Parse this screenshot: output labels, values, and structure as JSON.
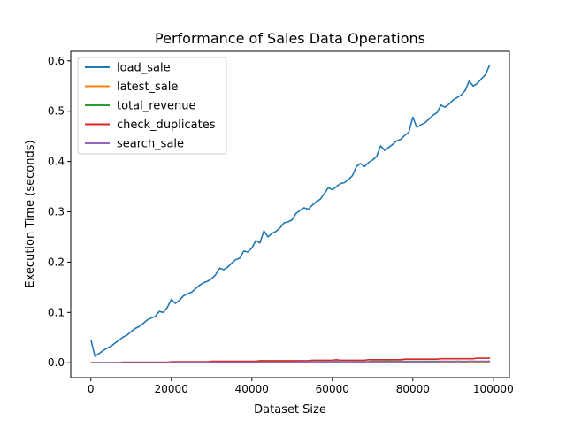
{
  "chart_data": {
    "type": "line",
    "title": "Performance of Sales Data Operations",
    "xlabel": "Dataset Size",
    "ylabel": "Execution Time (seconds)",
    "xlim": [
      -5000,
      104000
    ],
    "ylim": [
      -0.0295,
      0.619
    ],
    "x_ticks": [
      0,
      20000,
      40000,
      60000,
      80000,
      100000
    ],
    "x_tick_labels": [
      "0",
      "20000",
      "40000",
      "60000",
      "80000",
      "100000"
    ],
    "y_ticks": [
      0.0,
      0.1,
      0.2,
      0.3,
      0.4,
      0.5,
      0.6
    ],
    "y_tick_labels": [
      "0.0",
      "0.1",
      "0.2",
      "0.3",
      "0.4",
      "0.5",
      "0.6"
    ],
    "grid": false,
    "legend_position": "top-left",
    "x": [
      100,
      1000,
      2000,
      3000,
      4000,
      5000,
      6000,
      7000,
      8000,
      9000,
      10000,
      11000,
      12000,
      13000,
      14000,
      15000,
      16000,
      17000,
      18000,
      19000,
      20000,
      21000,
      22000,
      23000,
      24000,
      25000,
      26000,
      27000,
      28000,
      29000,
      30000,
      31000,
      32000,
      33000,
      34000,
      35000,
      36000,
      37000,
      38000,
      39000,
      40000,
      41000,
      42000,
      43000,
      44000,
      45000,
      46000,
      47000,
      48000,
      49000,
      50000,
      51000,
      52000,
      53000,
      54000,
      55000,
      56000,
      57000,
      58000,
      59000,
      60000,
      61000,
      62000,
      63000,
      64000,
      65000,
      66000,
      67000,
      68000,
      69000,
      70000,
      71000,
      72000,
      73000,
      74000,
      75000,
      76000,
      77000,
      78000,
      79000,
      80000,
      81000,
      82000,
      83000,
      84000,
      85000,
      86000,
      87000,
      88000,
      89000,
      90000,
      91000,
      92000,
      93000,
      94000,
      95000,
      96000,
      97000,
      98000,
      99000
    ],
    "series": [
      {
        "name": "load_sale",
        "color": "#1f77b4",
        "values": [
          0.043,
          0.013,
          0.018,
          0.024,
          0.029,
          0.033,
          0.039,
          0.045,
          0.051,
          0.055,
          0.062,
          0.068,
          0.072,
          0.078,
          0.085,
          0.089,
          0.092,
          0.102,
          0.1,
          0.11,
          0.126,
          0.118,
          0.124,
          0.133,
          0.137,
          0.14,
          0.147,
          0.154,
          0.159,
          0.162,
          0.167,
          0.175,
          0.188,
          0.185,
          0.19,
          0.198,
          0.205,
          0.208,
          0.222,
          0.22,
          0.228,
          0.243,
          0.238,
          0.262,
          0.25,
          0.257,
          0.261,
          0.268,
          0.278,
          0.28,
          0.284,
          0.297,
          0.303,
          0.308,
          0.305,
          0.313,
          0.32,
          0.325,
          0.336,
          0.348,
          0.344,
          0.35,
          0.356,
          0.358,
          0.364,
          0.372,
          0.39,
          0.396,
          0.39,
          0.398,
          0.403,
          0.41,
          0.431,
          0.422,
          0.428,
          0.434,
          0.441,
          0.444,
          0.452,
          0.458,
          0.488,
          0.468,
          0.473,
          0.477,
          0.484,
          0.492,
          0.497,
          0.512,
          0.508,
          0.514,
          0.522,
          0.527,
          0.532,
          0.541,
          0.56,
          0.55,
          0.555,
          0.564,
          0.572,
          0.59
        ]
      },
      {
        "name": "latest_sale",
        "color": "#ff7f0e",
        "values": [
          0.0,
          0.0,
          0.0,
          0.0,
          0.0,
          0.0,
          0.0,
          0.0,
          0.0,
          0.0,
          0.0,
          0.0,
          0.0,
          0.0,
          0.0,
          0.0,
          0.0,
          0.0,
          0.0,
          0.0,
          0.0,
          0.0,
          0.0,
          0.0,
          0.0,
          0.0,
          0.0,
          0.0,
          0.0,
          0.0,
          0.0,
          0.0,
          0.0,
          0.0,
          0.0,
          0.0,
          0.0,
          0.0,
          0.0,
          0.0,
          0.0,
          0.0,
          0.0,
          0.0,
          0.0,
          0.0,
          0.0,
          0.0,
          0.0,
          0.0,
          0.0,
          0.0,
          0.0,
          0.0,
          0.0,
          0.0,
          0.0,
          0.0,
          0.0,
          0.0,
          0.0,
          0.0,
          0.0,
          0.0,
          0.0,
          0.0,
          0.0,
          0.0,
          0.0,
          0.0,
          0.0,
          0.0,
          0.0,
          0.0,
          0.0,
          0.0,
          0.0,
          0.0,
          0.0,
          0.0,
          0.0,
          0.0,
          0.0,
          0.0,
          0.0,
          0.0,
          0.0,
          0.0,
          0.0,
          0.0,
          0.0,
          0.0,
          0.0,
          0.0,
          0.0,
          0.0,
          0.0,
          0.0,
          0.0,
          0.0
        ]
      },
      {
        "name": "total_revenue",
        "color": "#2ca02c",
        "values": [
          0.0,
          0.0,
          0.0,
          0.0,
          0.0,
          0.0,
          0.0,
          0.0,
          0.001,
          0.001,
          0.001,
          0.001,
          0.001,
          0.001,
          0.001,
          0.001,
          0.001,
          0.001,
          0.001,
          0.001,
          0.001,
          0.001,
          0.001,
          0.001,
          0.001,
          0.001,
          0.001,
          0.001,
          0.001,
          0.001,
          0.001,
          0.001,
          0.001,
          0.001,
          0.001,
          0.001,
          0.001,
          0.001,
          0.001,
          0.001,
          0.002,
          0.002,
          0.002,
          0.002,
          0.002,
          0.002,
          0.002,
          0.002,
          0.002,
          0.002,
          0.002,
          0.002,
          0.002,
          0.002,
          0.002,
          0.002,
          0.002,
          0.002,
          0.002,
          0.002,
          0.002,
          0.002,
          0.002,
          0.002,
          0.002,
          0.002,
          0.002,
          0.002,
          0.002,
          0.002,
          0.003,
          0.003,
          0.003,
          0.003,
          0.003,
          0.003,
          0.003,
          0.003,
          0.003,
          0.003,
          0.003,
          0.003,
          0.003,
          0.003,
          0.003,
          0.003,
          0.003,
          0.003,
          0.003,
          0.003,
          0.003,
          0.003,
          0.003,
          0.003,
          0.003,
          0.003,
          0.003,
          0.003,
          0.003,
          0.003
        ]
      },
      {
        "name": "check_duplicates",
        "color": "#d62728",
        "values": [
          0.0,
          0.0,
          0.0,
          0.0,
          0.0,
          0.0,
          0.0,
          0.0,
          0.001,
          0.001,
          0.001,
          0.001,
          0.001,
          0.001,
          0.001,
          0.001,
          0.001,
          0.001,
          0.001,
          0.001,
          0.002,
          0.002,
          0.002,
          0.002,
          0.002,
          0.002,
          0.002,
          0.002,
          0.002,
          0.002,
          0.003,
          0.003,
          0.003,
          0.003,
          0.003,
          0.003,
          0.003,
          0.003,
          0.003,
          0.003,
          0.003,
          0.003,
          0.004,
          0.004,
          0.004,
          0.004,
          0.004,
          0.004,
          0.004,
          0.004,
          0.004,
          0.004,
          0.004,
          0.004,
          0.004,
          0.005,
          0.005,
          0.005,
          0.005,
          0.005,
          0.005,
          0.006,
          0.005,
          0.005,
          0.005,
          0.005,
          0.005,
          0.005,
          0.005,
          0.006,
          0.006,
          0.006,
          0.006,
          0.006,
          0.006,
          0.006,
          0.006,
          0.006,
          0.007,
          0.007,
          0.007,
          0.007,
          0.007,
          0.007,
          0.007,
          0.007,
          0.007,
          0.008,
          0.008,
          0.008,
          0.008,
          0.008,
          0.008,
          0.008,
          0.008,
          0.008,
          0.009,
          0.009,
          0.009,
          0.009
        ]
      },
      {
        "name": "search_sale",
        "color": "#9467bd",
        "values": [
          0.0,
          0.0,
          0.0,
          0.0,
          0.0,
          0.0,
          0.0,
          0.0,
          0.0,
          0.0,
          0.0,
          0.0,
          0.0,
          0.0,
          0.0,
          0.0,
          0.0,
          0.0,
          0.0,
          0.0,
          0.001,
          0.001,
          0.001,
          0.001,
          0.001,
          0.001,
          0.001,
          0.001,
          0.001,
          0.001,
          0.001,
          0.001,
          0.001,
          0.001,
          0.001,
          0.001,
          0.001,
          0.001,
          0.001,
          0.001,
          0.001,
          0.001,
          0.001,
          0.001,
          0.001,
          0.001,
          0.001,
          0.001,
          0.001,
          0.001,
          0.001,
          0.001,
          0.002,
          0.002,
          0.002,
          0.002,
          0.001,
          0.002,
          0.002,
          0.002,
          0.002,
          0.003,
          0.002,
          0.001,
          0.002,
          0.002,
          0.002,
          0.002,
          0.002,
          0.001,
          0.002,
          0.002,
          0.002,
          0.002,
          0.001,
          0.002,
          0.002,
          0.002,
          0.002,
          0.002,
          0.002,
          0.002,
          0.002,
          0.002,
          0.002,
          0.001,
          0.002,
          0.002,
          0.003,
          0.002,
          0.002,
          0.003,
          0.002,
          0.002,
          0.003,
          0.003,
          0.002,
          0.003,
          0.002,
          0.003
        ]
      }
    ]
  }
}
